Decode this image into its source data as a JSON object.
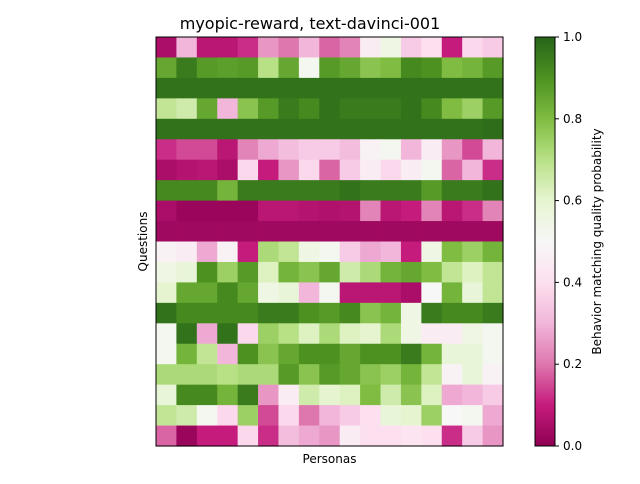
{
  "chart_data": {
    "type": "heatmap",
    "title": "myopic-reward, text-davinci-001",
    "xlabel": "Personas",
    "ylabel": "Questions",
    "colorbar": {
      "label": "Behavior matching quality probability",
      "min": 0.0,
      "max": 1.0,
      "ticks": [
        "0.0",
        "0.2",
        "0.4",
        "0.6",
        "0.8",
        "1.0"
      ],
      "colormap": "PiYG"
    },
    "n_rows": 20,
    "n_cols": 17,
    "values": [
      [
        0.05,
        0.3,
        0.08,
        0.08,
        0.12,
        0.25,
        0.2,
        0.3,
        0.18,
        0.22,
        0.45,
        0.55,
        0.35,
        0.4,
        0.1,
        0.38,
        0.35
      ],
      [
        0.85,
        0.95,
        0.88,
        0.87,
        0.88,
        0.7,
        0.85,
        0.52,
        0.88,
        0.85,
        0.78,
        0.8,
        0.92,
        0.9,
        0.8,
        0.82,
        0.88
      ],
      [
        0.97,
        0.97,
        0.97,
        0.97,
        0.97,
        0.97,
        0.97,
        0.97,
        0.97,
        0.97,
        0.97,
        0.97,
        0.97,
        0.97,
        0.97,
        0.97,
        0.97
      ],
      [
        0.68,
        0.65,
        0.85,
        0.3,
        0.78,
        0.88,
        0.95,
        0.92,
        0.97,
        0.95,
        0.95,
        0.95,
        0.97,
        0.92,
        0.8,
        0.75,
        0.88
      ],
      [
        0.97,
        0.97,
        0.97,
        0.97,
        0.97,
        0.97,
        0.97,
        0.97,
        0.97,
        0.97,
        0.97,
        0.97,
        0.97,
        0.97,
        0.97,
        0.97,
        0.98
      ],
      [
        0.12,
        0.15,
        0.15,
        0.08,
        0.22,
        0.28,
        0.32,
        0.35,
        0.35,
        0.32,
        0.48,
        0.52,
        0.3,
        0.45,
        0.25,
        0.15,
        0.3
      ],
      [
        0.05,
        0.07,
        0.08,
        0.05,
        0.38,
        0.1,
        0.25,
        0.38,
        0.18,
        0.35,
        0.45,
        0.38,
        0.45,
        0.52,
        0.18,
        0.3,
        0.12
      ],
      [
        0.92,
        0.92,
        0.92,
        0.82,
        0.95,
        0.95,
        0.95,
        0.95,
        0.95,
        0.97,
        0.95,
        0.95,
        0.95,
        0.88,
        0.95,
        0.95,
        0.97
      ],
      [
        0.05,
        0.02,
        0.02,
        0.02,
        0.02,
        0.08,
        0.08,
        0.07,
        0.06,
        0.07,
        0.22,
        0.08,
        0.1,
        0.22,
        0.08,
        0.12,
        0.22
      ],
      [
        0.03,
        0.03,
        0.03,
        0.03,
        0.03,
        0.03,
        0.03,
        0.03,
        0.03,
        0.03,
        0.03,
        0.03,
        0.03,
        0.03,
        0.03,
        0.03,
        0.03
      ],
      [
        0.48,
        0.45,
        0.28,
        0.48,
        0.1,
        0.72,
        0.68,
        0.55,
        0.52,
        0.35,
        0.28,
        0.3,
        0.1,
        0.55,
        0.8,
        0.75,
        0.82
      ],
      [
        0.55,
        0.58,
        0.9,
        0.75,
        0.88,
        0.62,
        0.82,
        0.78,
        0.85,
        0.65,
        0.72,
        0.82,
        0.85,
        0.8,
        0.68,
        0.62,
        0.68
      ],
      [
        0.6,
        0.85,
        0.85,
        0.92,
        0.85,
        0.55,
        0.58,
        0.3,
        0.52,
        0.08,
        0.08,
        0.08,
        0.05,
        0.5,
        0.82,
        0.58,
        0.68
      ],
      [
        0.97,
        0.92,
        0.92,
        0.92,
        0.92,
        0.95,
        0.95,
        0.9,
        0.88,
        0.92,
        0.78,
        0.82,
        0.55,
        0.95,
        0.92,
        0.92,
        0.95
      ],
      [
        0.52,
        0.97,
        0.28,
        0.97,
        0.38,
        0.75,
        0.7,
        0.62,
        0.72,
        0.62,
        0.6,
        0.72,
        0.55,
        0.45,
        0.45,
        0.55,
        0.52
      ],
      [
        0.52,
        0.82,
        0.68,
        0.3,
        0.9,
        0.78,
        0.85,
        0.9,
        0.9,
        0.85,
        0.9,
        0.9,
        0.95,
        0.82,
        0.58,
        0.58,
        0.52
      ],
      [
        0.72,
        0.72,
        0.72,
        0.7,
        0.72,
        0.72,
        0.88,
        0.78,
        0.88,
        0.85,
        0.78,
        0.75,
        0.82,
        0.68,
        0.48,
        0.58,
        0.48
      ],
      [
        0.58,
        0.92,
        0.92,
        0.82,
        0.95,
        0.25,
        0.45,
        0.65,
        0.6,
        0.62,
        0.8,
        0.65,
        0.78,
        0.62,
        0.28,
        0.3,
        0.35
      ],
      [
        0.68,
        0.65,
        0.52,
        0.38,
        0.75,
        0.15,
        0.38,
        0.2,
        0.3,
        0.35,
        0.4,
        0.58,
        0.6,
        0.75,
        0.5,
        0.52,
        0.28
      ],
      [
        0.18,
        0.02,
        0.1,
        0.1,
        0.38,
        0.12,
        0.32,
        0.28,
        0.25,
        0.45,
        0.4,
        0.4,
        0.42,
        0.4,
        0.12,
        0.35,
        0.25
      ]
    ]
  }
}
